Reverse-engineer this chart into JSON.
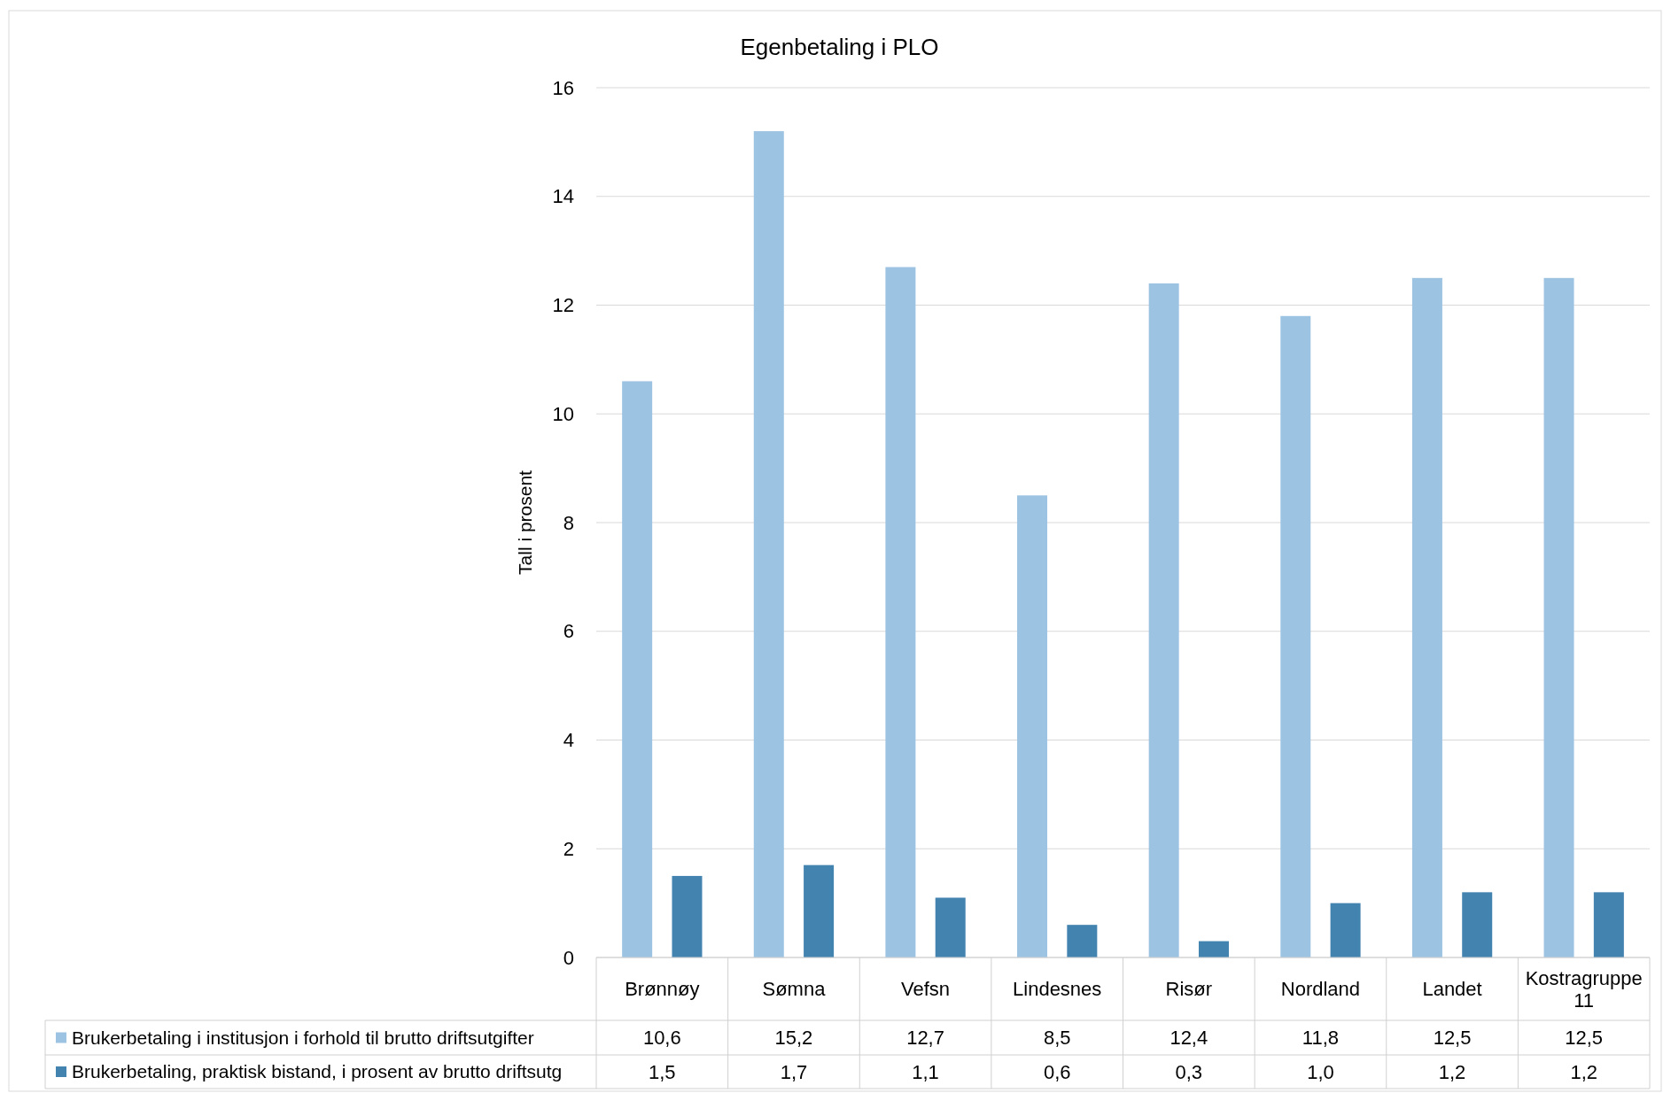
{
  "chart_data": {
    "type": "bar",
    "title": "Egenbetaling i PLO",
    "ylabel": "Tall i prosent",
    "categories": [
      "Brønnøy",
      "Sømna",
      "Vefsn",
      "Lindesnes",
      "Risør",
      "Nordland",
      "Landet",
      "Kostragruppe 11"
    ],
    "series": [
      {
        "name": "Brukerbetaling i institusjon i forhold til brutto driftsutgifter",
        "color": "#9dc3e2",
        "values": [
          10.6,
          15.2,
          12.7,
          8.5,
          12.4,
          11.8,
          12.5,
          12.5
        ],
        "value_labels": [
          "10,6",
          "15,2",
          "12,7",
          "8,5",
          "12,4",
          "11,8",
          "12,5",
          "12,5"
        ]
      },
      {
        "name": "Brukerbetaling, praktisk bistand, i prosent av brutto driftsutg",
        "color": "#4383b0",
        "values": [
          1.5,
          1.7,
          1.1,
          0.6,
          0.3,
          1.0,
          1.2,
          1.2
        ],
        "value_labels": [
          "1,5",
          "1,7",
          "1,1",
          "0,6",
          "0,3",
          "1,0",
          "1,2",
          "1,2"
        ]
      }
    ],
    "ylim": [
      0,
      16
    ],
    "yticks": [
      0,
      2,
      4,
      6,
      8,
      10,
      12,
      14,
      16
    ],
    "grid": "y",
    "legend": "bottom"
  }
}
